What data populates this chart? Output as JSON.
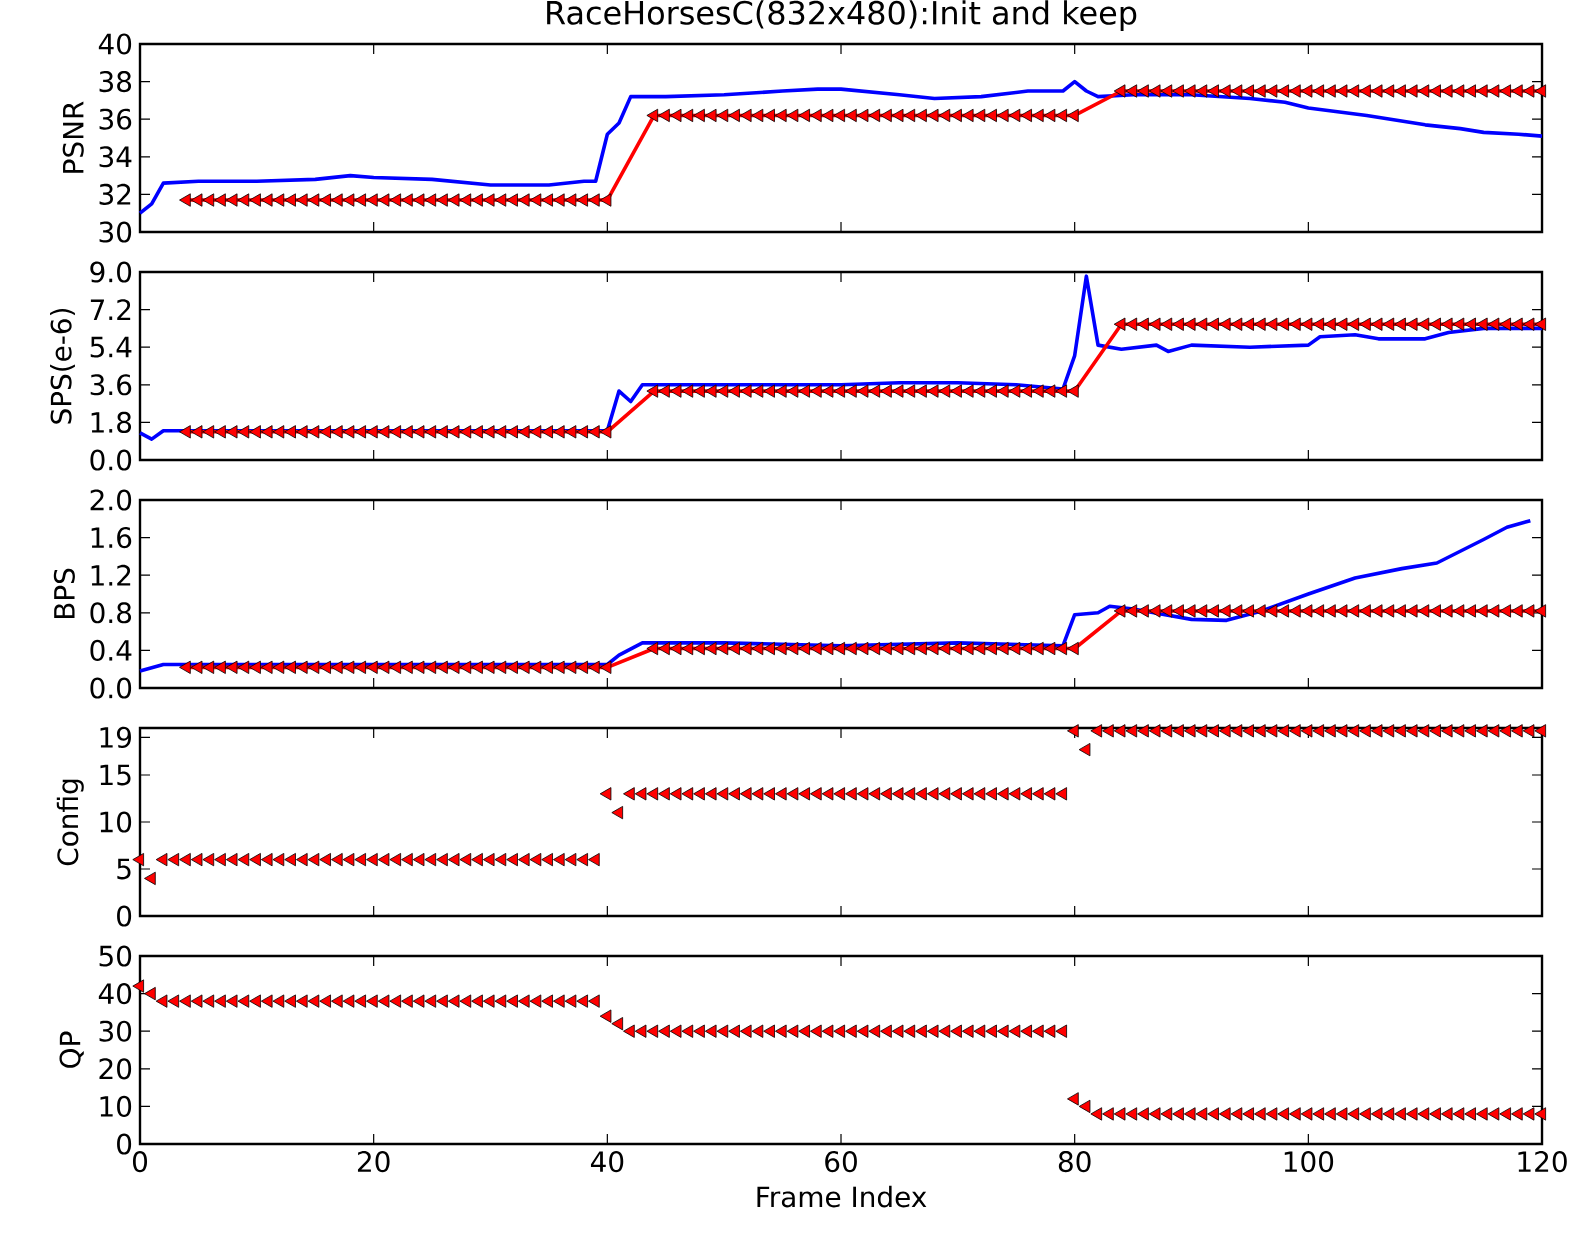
{
  "chart_data": [
    {
      "type": "line",
      "title": "RaceHorsesC(832x480):Init and keep",
      "ylabel": "PSNR",
      "xlim": [
        0,
        120
      ],
      "xticks": [
        0,
        20,
        40,
        60,
        80,
        100,
        120
      ],
      "ylim": [
        30,
        40
      ],
      "yticks": [
        30,
        32,
        34,
        36,
        38,
        40
      ],
      "tick_labels": "y",
      "series": [
        {
          "color": "#0000ff",
          "x": [
            0,
            1,
            2,
            5,
            10,
            15,
            18,
            20,
            25,
            30,
            35,
            38,
            39,
            40,
            41,
            42,
            45,
            50,
            55,
            58,
            60,
            65,
            68,
            72,
            76,
            79,
            80,
            81,
            82,
            85,
            90,
            95,
            98,
            100,
            105,
            110,
            113,
            115,
            118,
            120
          ],
          "values": [
            31.0,
            31.5,
            32.6,
            32.7,
            32.7,
            32.8,
            33.0,
            32.9,
            32.8,
            32.5,
            32.5,
            32.7,
            32.7,
            35.2,
            35.8,
            37.2,
            37.2,
            37.3,
            37.5,
            37.6,
            37.6,
            37.3,
            37.1,
            37.2,
            37.5,
            37.5,
            38.0,
            37.5,
            37.2,
            37.3,
            37.3,
            37.1,
            36.9,
            36.6,
            36.2,
            35.7,
            35.5,
            35.3,
            35.2,
            35.1
          ]
        },
        {
          "color": "#ff0000",
          "marker": "triangle",
          "x": [
            4,
            5,
            6,
            7,
            8,
            9,
            10,
            11,
            12,
            13,
            14,
            15,
            16,
            17,
            18,
            19,
            20,
            21,
            22,
            23,
            24,
            25,
            26,
            27,
            28,
            29,
            30,
            31,
            32,
            33,
            34,
            35,
            36,
            37,
            38,
            39,
            40,
            44,
            45,
            46,
            47,
            48,
            49,
            50,
            51,
            52,
            53,
            54,
            55,
            56,
            57,
            58,
            59,
            60,
            61,
            62,
            63,
            64,
            65,
            66,
            67,
            68,
            69,
            70,
            71,
            72,
            73,
            74,
            75,
            76,
            77,
            78,
            79,
            80,
            84,
            85,
            86,
            87,
            88,
            89,
            90,
            91,
            92,
            93,
            94,
            95,
            96,
            97,
            98,
            99,
            100,
            101,
            102,
            103,
            104,
            105,
            106,
            107,
            108,
            109,
            110,
            111,
            112,
            113,
            114,
            115,
            116,
            117,
            118,
            119,
            120
          ],
          "values": [
            31.7,
            31.7,
            31.7,
            31.7,
            31.7,
            31.7,
            31.7,
            31.7,
            31.7,
            31.7,
            31.7,
            31.7,
            31.7,
            31.7,
            31.7,
            31.7,
            31.7,
            31.7,
            31.7,
            31.7,
            31.7,
            31.7,
            31.7,
            31.7,
            31.7,
            31.7,
            31.7,
            31.7,
            31.7,
            31.7,
            31.7,
            31.7,
            31.7,
            31.7,
            31.7,
            31.7,
            31.7,
            36.2,
            36.2,
            36.2,
            36.2,
            36.2,
            36.2,
            36.2,
            36.2,
            36.2,
            36.2,
            36.2,
            36.2,
            36.2,
            36.2,
            36.2,
            36.2,
            36.2,
            36.2,
            36.2,
            36.2,
            36.2,
            36.2,
            36.2,
            36.2,
            36.2,
            36.2,
            36.2,
            36.2,
            36.2,
            36.2,
            36.2,
            36.2,
            36.2,
            36.2,
            36.2,
            36.2,
            36.2,
            37.5,
            37.5,
            37.5,
            37.5,
            37.5,
            37.5,
            37.5,
            37.5,
            37.5,
            37.5,
            37.5,
            37.5,
            37.5,
            37.5,
            37.5,
            37.5,
            37.5,
            37.5,
            37.5,
            37.5,
            37.5,
            37.5,
            37.5,
            37.5,
            37.5,
            37.5,
            37.5,
            37.5,
            37.5,
            37.5,
            37.5,
            37.5,
            37.5,
            37.5,
            37.5,
            37.5,
            37.5
          ]
        }
      ]
    },
    {
      "type": "line",
      "ylabel": "SPS(e-6)",
      "xlim": [
        0,
        120
      ],
      "xticks": [
        0,
        20,
        40,
        60,
        80,
        100,
        120
      ],
      "ylim": [
        0,
        9
      ],
      "yticks": [
        {
          "value": 0,
          "label": "0.0"
        },
        1.8,
        3.6,
        5.4,
        7.2,
        {
          "value": 9,
          "label": "9.0"
        }
      ],
      "tick_labels": "y",
      "series": [
        {
          "color": "#0000ff",
          "x": [
            0,
            1,
            2,
            4,
            10,
            20,
            30,
            40,
            41,
            42,
            43,
            50,
            60,
            65,
            70,
            75,
            79,
            80,
            81,
            82,
            84,
            87,
            88,
            90,
            95,
            100,
            101,
            104,
            106,
            110,
            112,
            115,
            120
          ],
          "values": [
            1.3,
            1.0,
            1.4,
            1.4,
            1.4,
            1.4,
            1.4,
            1.4,
            3.3,
            2.8,
            3.6,
            3.6,
            3.6,
            3.7,
            3.7,
            3.6,
            3.4,
            5.0,
            8.8,
            5.5,
            5.3,
            5.5,
            5.2,
            5.5,
            5.4,
            5.5,
            5.9,
            6.0,
            5.8,
            5.8,
            6.1,
            6.3,
            6.3
          ]
        },
        {
          "color": "#ff0000",
          "marker": "triangle",
          "x": [
            4,
            5,
            6,
            7,
            8,
            9,
            10,
            11,
            12,
            13,
            14,
            15,
            16,
            17,
            18,
            19,
            20,
            21,
            22,
            23,
            24,
            25,
            26,
            27,
            28,
            29,
            30,
            31,
            32,
            33,
            34,
            35,
            36,
            37,
            38,
            39,
            40,
            44,
            45,
            46,
            47,
            48,
            49,
            50,
            51,
            52,
            53,
            54,
            55,
            56,
            57,
            58,
            59,
            60,
            61,
            62,
            63,
            64,
            65,
            66,
            67,
            68,
            69,
            70,
            71,
            72,
            73,
            74,
            75,
            76,
            77,
            78,
            79,
            80,
            84,
            85,
            86,
            87,
            88,
            89,
            90,
            91,
            92,
            93,
            94,
            95,
            96,
            97,
            98,
            99,
            100,
            101,
            102,
            103,
            104,
            105,
            106,
            107,
            108,
            109,
            110,
            111,
            112,
            113,
            114,
            115,
            116,
            117,
            118,
            119,
            120
          ],
          "values": [
            1.35,
            1.35,
            1.35,
            1.35,
            1.35,
            1.35,
            1.35,
            1.35,
            1.35,
            1.35,
            1.35,
            1.35,
            1.35,
            1.35,
            1.35,
            1.35,
            1.35,
            1.35,
            1.35,
            1.35,
            1.35,
            1.35,
            1.35,
            1.35,
            1.35,
            1.35,
            1.35,
            1.35,
            1.35,
            1.35,
            1.35,
            1.35,
            1.35,
            1.35,
            1.35,
            1.35,
            1.35,
            3.3,
            3.3,
            3.3,
            3.3,
            3.3,
            3.3,
            3.3,
            3.3,
            3.3,
            3.3,
            3.3,
            3.3,
            3.3,
            3.3,
            3.3,
            3.3,
            3.3,
            3.3,
            3.3,
            3.3,
            3.3,
            3.3,
            3.3,
            3.3,
            3.3,
            3.3,
            3.3,
            3.3,
            3.3,
            3.3,
            3.3,
            3.3,
            3.3,
            3.3,
            3.3,
            3.3,
            3.3,
            6.5,
            6.5,
            6.5,
            6.5,
            6.5,
            6.5,
            6.5,
            6.5,
            6.5,
            6.5,
            6.5,
            6.5,
            6.5,
            6.5,
            6.5,
            6.5,
            6.5,
            6.5,
            6.5,
            6.5,
            6.5,
            6.5,
            6.5,
            6.5,
            6.5,
            6.5,
            6.5,
            6.5,
            6.5,
            6.5,
            6.5,
            6.5,
            6.5,
            6.5,
            6.5,
            6.5,
            6.5
          ]
        }
      ]
    },
    {
      "type": "line",
      "ylabel": "BPS",
      "xlim": [
        0,
        120
      ],
      "xticks": [
        0,
        20,
        40,
        60,
        80,
        100,
        120
      ],
      "ylim": [
        0,
        2
      ],
      "yticks": [
        {
          "value": 0,
          "label": "0.0"
        },
        0.4,
        0.8,
        1.2,
        1.6,
        {
          "value": 2,
          "label": "2.0"
        }
      ],
      "tick_labels": "y",
      "series": [
        {
          "color": "#0000ff",
          "x": [
            0,
            2,
            4,
            20,
            40,
            41,
            43,
            50,
            60,
            70,
            79,
            80,
            82,
            83,
            85,
            90,
            93,
            96,
            100,
            104,
            108,
            111,
            115,
            117,
            119
          ],
          "values": [
            0.18,
            0.25,
            0.25,
            0.25,
            0.25,
            0.35,
            0.48,
            0.48,
            0.45,
            0.48,
            0.45,
            0.78,
            0.8,
            0.87,
            0.84,
            0.73,
            0.72,
            0.82,
            1.0,
            1.17,
            1.27,
            1.33,
            1.58,
            1.71,
            1.78
          ]
        },
        {
          "color": "#ff0000",
          "marker": "triangle",
          "x": [
            4,
            5,
            6,
            7,
            8,
            9,
            10,
            11,
            12,
            13,
            14,
            15,
            16,
            17,
            18,
            19,
            20,
            21,
            22,
            23,
            24,
            25,
            26,
            27,
            28,
            29,
            30,
            31,
            32,
            33,
            34,
            35,
            36,
            37,
            38,
            39,
            40,
            44,
            45,
            46,
            47,
            48,
            49,
            50,
            51,
            52,
            53,
            54,
            55,
            56,
            57,
            58,
            59,
            60,
            61,
            62,
            63,
            64,
            65,
            66,
            67,
            68,
            69,
            70,
            71,
            72,
            73,
            74,
            75,
            76,
            77,
            78,
            79,
            80,
            84,
            85,
            86,
            87,
            88,
            89,
            90,
            91,
            92,
            93,
            94,
            95,
            96,
            97,
            98,
            99,
            100,
            101,
            102,
            103,
            104,
            105,
            106,
            107,
            108,
            109,
            110,
            111,
            112,
            113,
            114,
            115,
            116,
            117,
            118,
            119,
            120
          ],
          "values": [
            0.22,
            0.22,
            0.22,
            0.22,
            0.22,
            0.22,
            0.22,
            0.22,
            0.22,
            0.22,
            0.22,
            0.22,
            0.22,
            0.22,
            0.22,
            0.22,
            0.22,
            0.22,
            0.22,
            0.22,
            0.22,
            0.22,
            0.22,
            0.22,
            0.22,
            0.22,
            0.22,
            0.22,
            0.22,
            0.22,
            0.22,
            0.22,
            0.22,
            0.22,
            0.22,
            0.22,
            0.22,
            0.42,
            0.42,
            0.42,
            0.42,
            0.42,
            0.42,
            0.42,
            0.42,
            0.42,
            0.42,
            0.42,
            0.42,
            0.42,
            0.42,
            0.42,
            0.42,
            0.42,
            0.42,
            0.42,
            0.42,
            0.42,
            0.42,
            0.42,
            0.42,
            0.42,
            0.42,
            0.42,
            0.42,
            0.42,
            0.42,
            0.42,
            0.42,
            0.42,
            0.42,
            0.42,
            0.42,
            0.42,
            0.82,
            0.82,
            0.82,
            0.82,
            0.82,
            0.82,
            0.82,
            0.82,
            0.82,
            0.82,
            0.82,
            0.82,
            0.82,
            0.82,
            0.82,
            0.82,
            0.82,
            0.82,
            0.82,
            0.82,
            0.82,
            0.82,
            0.82,
            0.82,
            0.82,
            0.82,
            0.82,
            0.82,
            0.82,
            0.82,
            0.82,
            0.82,
            0.82,
            0.82,
            0.82,
            0.82,
            0.82
          ]
        }
      ]
    },
    {
      "type": "scatter",
      "ylabel": "Config",
      "xlim": [
        0,
        120
      ],
      "xticks": [
        0,
        20,
        40,
        60,
        80,
        100,
        120
      ],
      "ylim": [
        0,
        20
      ],
      "yticks": [
        0,
        5,
        10,
        15,
        19
      ],
      "tick_labels": "y",
      "marker": "triangle",
      "series": [
        {
          "color": "#ff0000",
          "x": [
            0,
            1,
            2,
            3,
            4,
            5,
            6,
            7,
            8,
            9,
            10,
            11,
            12,
            13,
            14,
            15,
            16,
            17,
            18,
            19,
            20,
            21,
            22,
            23,
            24,
            25,
            26,
            27,
            28,
            29,
            30,
            31,
            32,
            33,
            34,
            35,
            36,
            37,
            38,
            39,
            40,
            41,
            42,
            43,
            44,
            45,
            46,
            47,
            48,
            49,
            50,
            51,
            52,
            53,
            54,
            55,
            56,
            57,
            58,
            59,
            60,
            61,
            62,
            63,
            64,
            65,
            66,
            67,
            68,
            69,
            70,
            71,
            72,
            73,
            74,
            75,
            76,
            77,
            78,
            79,
            80,
            81,
            82,
            83,
            84,
            85,
            86,
            87,
            88,
            89,
            90,
            91,
            92,
            93,
            94,
            95,
            96,
            97,
            98,
            99,
            100,
            101,
            102,
            103,
            104,
            105,
            106,
            107,
            108,
            109,
            110,
            111,
            112,
            113,
            114,
            115,
            116,
            117,
            118,
            119,
            120
          ],
          "values": [
            6,
            4,
            6,
            6,
            6,
            6,
            6,
            6,
            6,
            6,
            6,
            6,
            6,
            6,
            6,
            6,
            6,
            6,
            6,
            6,
            6,
            6,
            6,
            6,
            6,
            6,
            6,
            6,
            6,
            6,
            6,
            6,
            6,
            6,
            6,
            6,
            6,
            6,
            6,
            6,
            13,
            11,
            13,
            13,
            13,
            13,
            13,
            13,
            13,
            13,
            13,
            13,
            13,
            13,
            13,
            13,
            13,
            13,
            13,
            13,
            13,
            13,
            13,
            13,
            13,
            13,
            13,
            13,
            13,
            13,
            13,
            13,
            13,
            13,
            13,
            13,
            13,
            13,
            13,
            13,
            19.7,
            17.7,
            19.7,
            19.7,
            19.7,
            19.7,
            19.7,
            19.7,
            19.7,
            19.7,
            19.7,
            19.7,
            19.7,
            19.7,
            19.7,
            19.7,
            19.7,
            19.7,
            19.7,
            19.7,
            19.7,
            19.7,
            19.7,
            19.7,
            19.7,
            19.7,
            19.7,
            19.7,
            19.7,
            19.7,
            19.7,
            19.7,
            19.7,
            19.7,
            19.7,
            19.7,
            19.7,
            19.7,
            19.7,
            19.7,
            19.7
          ]
        }
      ]
    },
    {
      "type": "scatter",
      "ylabel": "QP",
      "xlabel": "Frame Index",
      "xlim": [
        0,
        120
      ],
      "xticks": [
        0,
        20,
        40,
        60,
        80,
        100,
        120
      ],
      "ylim": [
        0,
        50
      ],
      "yticks": [
        0,
        10,
        20,
        30,
        40,
        50
      ],
      "marker": "triangle",
      "series": [
        {
          "color": "#ff0000",
          "x": [
            0,
            1,
            2,
            3,
            4,
            5,
            6,
            7,
            8,
            9,
            10,
            11,
            12,
            13,
            14,
            15,
            16,
            17,
            18,
            19,
            20,
            21,
            22,
            23,
            24,
            25,
            26,
            27,
            28,
            29,
            30,
            31,
            32,
            33,
            34,
            35,
            36,
            37,
            38,
            39,
            40,
            41,
            42,
            43,
            44,
            45,
            46,
            47,
            48,
            49,
            50,
            51,
            52,
            53,
            54,
            55,
            56,
            57,
            58,
            59,
            60,
            61,
            62,
            63,
            64,
            65,
            66,
            67,
            68,
            69,
            70,
            71,
            72,
            73,
            74,
            75,
            76,
            77,
            78,
            79,
            80,
            81,
            82,
            83,
            84,
            85,
            86,
            87,
            88,
            89,
            90,
            91,
            92,
            93,
            94,
            95,
            96,
            97,
            98,
            99,
            100,
            101,
            102,
            103,
            104,
            105,
            106,
            107,
            108,
            109,
            110,
            111,
            112,
            113,
            114,
            115,
            116,
            117,
            118,
            119,
            120
          ],
          "values": [
            42,
            40,
            38,
            38,
            38,
            38,
            38,
            38,
            38,
            38,
            38,
            38,
            38,
            38,
            38,
            38,
            38,
            38,
            38,
            38,
            38,
            38,
            38,
            38,
            38,
            38,
            38,
            38,
            38,
            38,
            38,
            38,
            38,
            38,
            38,
            38,
            38,
            38,
            38,
            38,
            34,
            32,
            30,
            30,
            30,
            30,
            30,
            30,
            30,
            30,
            30,
            30,
            30,
            30,
            30,
            30,
            30,
            30,
            30,
            30,
            30,
            30,
            30,
            30,
            30,
            30,
            30,
            30,
            30,
            30,
            30,
            30,
            30,
            30,
            30,
            30,
            30,
            30,
            30,
            30,
            12,
            10,
            8,
            8,
            8,
            8,
            8,
            8,
            8,
            8,
            8,
            8,
            8,
            8,
            8,
            8,
            8,
            8,
            8,
            8,
            8,
            8,
            8,
            8,
            8,
            8,
            8,
            8,
            8,
            8,
            8,
            8,
            8,
            8,
            8,
            8,
            8,
            8,
            8,
            8,
            8
          ]
        }
      ]
    }
  ]
}
